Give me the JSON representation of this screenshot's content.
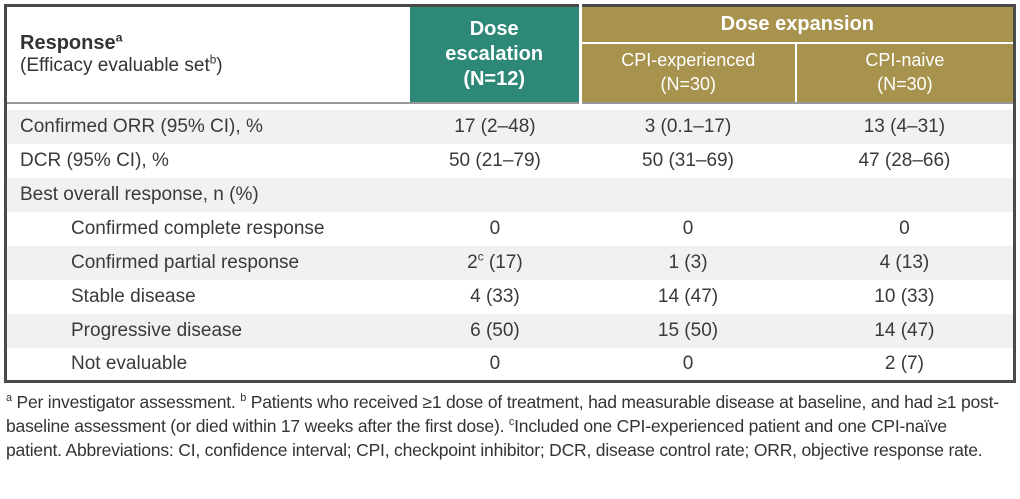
{
  "table": {
    "header": {
      "response_title": "Response^{a}",
      "response_subtitle": "(Efficacy evaluable set^{b})",
      "dose_escalation": {
        "name": "Dose escalation",
        "n": "(N=12)"
      },
      "dose_expansion": {
        "group": "Dose expansion",
        "children": [
          {
            "name": "CPI-experienced",
            "n": "(N=30)"
          },
          {
            "name": "CPI-naive",
            "n": "(N=30)"
          }
        ]
      }
    },
    "rows": [
      {
        "label": "Confirmed ORR (95% CI), %",
        "values": [
          "17 (2–48)",
          "3 (0.1–17)",
          "13 (4–31)"
        ]
      },
      {
        "label": "DCR (95% CI), %",
        "values": [
          "50 (21–79)",
          "50 (31–69)",
          "47 (28–66)"
        ]
      },
      {
        "label": "Best overall response, n (%)",
        "values": [
          "",
          "",
          ""
        ]
      },
      {
        "label": "Confirmed complete response",
        "values": [
          "0",
          "0",
          "0"
        ]
      },
      {
        "label": "Confirmed partial response",
        "values": [
          "2^{c} (17)",
          "1 (3)",
          "4 (13)"
        ]
      },
      {
        "label": "Stable disease",
        "values": [
          "4 (33)",
          "14 (47)",
          "10 (33)"
        ]
      },
      {
        "label": "Progressive disease",
        "values": [
          "6 (50)",
          "15 (50)",
          "14 (47)"
        ]
      },
      {
        "label": "Not evaluable",
        "values": [
          "0",
          "0",
          "2 (7)"
        ]
      }
    ]
  },
  "footnote": {
    "text": "^{a} Per investigator assessment. ^{b} Patients who received ≥1 dose of treatment, had measurable disease at baseline, and had ≥1 post-baseline assessment (or died within 17 weeks after the first dose). ^{c}Included one CPI-experienced patient and one CPI-naïve patient. Abbreviations: CI, confidence interval; CPI, checkpoint inhibitor; DCR, disease control rate; ORR, objective response rate."
  },
  "colors": {
    "teal_header": "#2E8877",
    "gold_header": "#A8934E",
    "row_stripe": "#F1F1F1",
    "table_border": "#4A4A4A",
    "text": "#3A3A3A"
  }
}
